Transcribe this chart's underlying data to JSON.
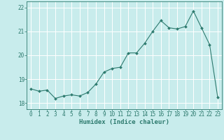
{
  "x": [
    0,
    1,
    2,
    3,
    4,
    5,
    6,
    7,
    8,
    9,
    10,
    11,
    12,
    13,
    14,
    15,
    16,
    17,
    18,
    19,
    20,
    21,
    22,
    23
  ],
  "y": [
    18.6,
    18.5,
    18.55,
    18.2,
    18.3,
    18.35,
    18.3,
    18.45,
    18.8,
    19.3,
    19.45,
    19.5,
    20.1,
    20.1,
    20.5,
    21.0,
    21.45,
    21.15,
    21.1,
    21.2,
    21.85,
    21.15,
    20.45,
    18.25
  ],
  "line_color": "#2d7a6e",
  "marker_color": "#2d7a6e",
  "bg_color": "#c8ecec",
  "grid_color": "#ffffff",
  "axis_color": "#2d7a6e",
  "tick_color": "#2d7a6e",
  "xlabel": "Humidex (Indice chaleur)",
  "ylim": [
    17.75,
    22.25
  ],
  "yticks": [
    18,
    19,
    20,
    21,
    22
  ],
  "xticks": [
    0,
    1,
    2,
    3,
    4,
    5,
    6,
    7,
    8,
    9,
    10,
    11,
    12,
    13,
    14,
    15,
    16,
    17,
    18,
    19,
    20,
    21,
    22,
    23
  ],
  "label_fontsize": 6.5,
  "tick_fontsize": 5.5
}
